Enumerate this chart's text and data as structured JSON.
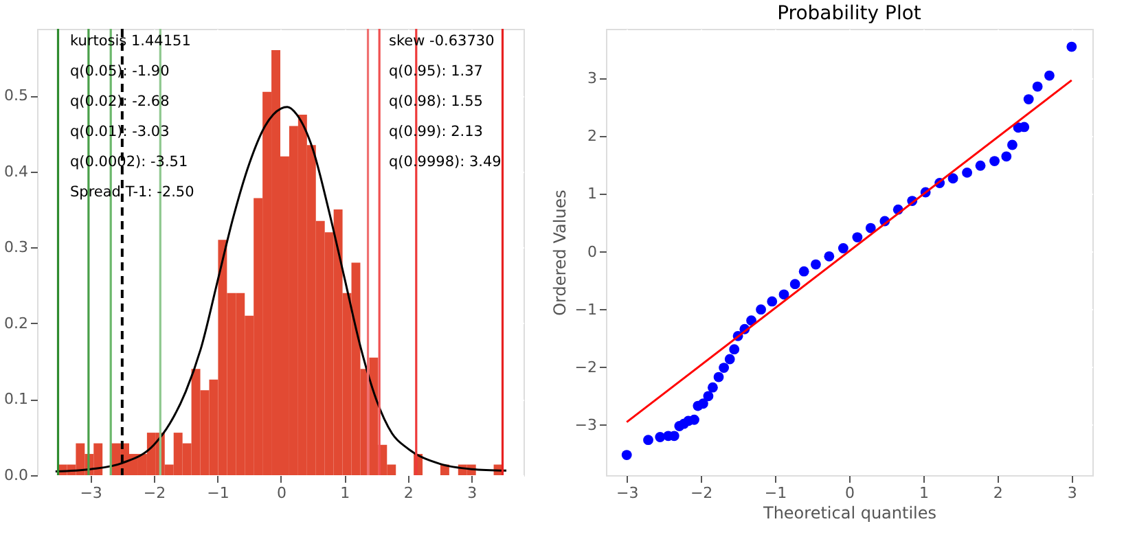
{
  "chart_data": [
    {
      "type": "histogram",
      "bins": [
        -3.51,
        -3.37,
        -3.23,
        -3.09,
        -2.95,
        -2.81,
        -2.67,
        -2.53,
        -2.39,
        -2.25,
        -2.11,
        -1.97,
        -1.83,
        -1.69,
        -1.55,
        -1.41,
        -1.27,
        -1.13,
        -0.99,
        -0.85,
        -0.71,
        -0.57,
        -0.43,
        -0.29,
        -0.15,
        -0.01,
        0.13,
        0.27,
        0.41,
        0.55,
        0.69,
        0.83,
        0.97,
        1.11,
        1.25,
        1.39,
        1.53,
        1.67,
        1.81,
        1.95,
        2.09,
        2.23,
        2.37,
        2.51,
        2.65,
        2.79,
        2.93,
        3.07,
        3.21,
        3.35,
        3.49
      ],
      "values": [
        0.014,
        0.014,
        0.042,
        0.028,
        0.042,
        0,
        0.042,
        0.042,
        0.028,
        0.028,
        0.056,
        0.056,
        0.014,
        0.056,
        0.042,
        0.14,
        0.112,
        0.126,
        0.31,
        0.24,
        0.24,
        0.21,
        0.365,
        0.505,
        0.56,
        0.42,
        0.46,
        0.475,
        0.435,
        0.335,
        0.32,
        0.35,
        0.24,
        0.28,
        0.14,
        0.155,
        0.04,
        0.014,
        0,
        0,
        0.028,
        0,
        0,
        0.014,
        0,
        0.014,
        0.014,
        0,
        0,
        0.014
      ],
      "color": "#e24a33",
      "series": [
        {
          "type": "line",
          "color": "#000000",
          "x": [
            -3.55,
            -3.0,
            -2.5,
            -2.0,
            -1.75,
            -1.5,
            -1.25,
            -1.0,
            -0.75,
            -0.5,
            -0.25,
            0.0,
            0.1,
            0.25,
            0.5,
            0.75,
            1.0,
            1.25,
            1.5,
            1.75,
            2.0,
            2.5,
            3.0,
            3.55
          ],
          "values": [
            0.005,
            0.008,
            0.016,
            0.04,
            0.068,
            0.11,
            0.17,
            0.255,
            0.34,
            0.41,
            0.46,
            0.483,
            0.485,
            0.475,
            0.43,
            0.35,
            0.26,
            0.17,
            0.1,
            0.055,
            0.035,
            0.015,
            0.008,
            0.006
          ]
        }
      ],
      "ref_lines": [
        {
          "axis": "x",
          "value": -3.51,
          "color": "#2e8b2e"
        },
        {
          "axis": "x",
          "value": -3.03,
          "color": "#4aa04a"
        },
        {
          "axis": "x",
          "value": -2.68,
          "color": "#6cb86c"
        },
        {
          "axis": "x",
          "value": -1.9,
          "color": "#8fc88f"
        },
        {
          "axis": "x",
          "value": -2.5,
          "color": "#000000",
          "line_style": "dashed"
        },
        {
          "axis": "x",
          "value": 1.37,
          "color": "#f07070"
        },
        {
          "axis": "x",
          "value": 1.55,
          "color": "#f05050"
        },
        {
          "axis": "x",
          "value": 2.13,
          "color": "#ee3a3a"
        },
        {
          "axis": "x",
          "value": 3.49,
          "color": "#e82020"
        }
      ],
      "annotations": [
        "kurtosis 1.44151",
        "q(0.05): -1.90",
        "q(0.02): -2.68",
        "q(0.01): -3.03",
        "q(0.0002): -3.51",
        "Spread T-1: -2.50",
        "skew -0.63730",
        "q(0.95): 1.37",
        "q(0.98): 1.55",
        "q(0.99): 2.13",
        "q(0.9998): 3.49"
      ],
      "xlim": [
        -3.84,
        3.82
      ],
      "ylim": [
        0,
        0.588
      ],
      "xticks": [
        {
          "value": -3,
          "label": "−3"
        },
        {
          "value": -2,
          "label": "−2"
        },
        {
          "value": -1,
          "label": "−1"
        },
        0,
        1,
        2,
        3
      ],
      "yticks": [
        {
          "value": 0,
          "label": "0.0"
        },
        {
          "value": 0.1,
          "label": "0.1"
        },
        {
          "value": 0.2,
          "label": "0.2"
        },
        {
          "value": 0.3,
          "label": "0.3"
        },
        {
          "value": 0.4,
          "label": "0.4"
        },
        {
          "value": 0.5,
          "label": "0.5"
        }
      ],
      "grid": true
    },
    {
      "type": "scatter",
      "title": "Probability Plot",
      "xlabel": "Theoretical quantiles",
      "ylabel": "Ordered Values",
      "marker": "circle",
      "series": [
        {
          "type": "scatter",
          "color": "#0000ff",
          "x": [
            -3.0,
            -2.71,
            -2.55,
            -2.44,
            -2.36,
            -2.29,
            -2.23,
            -2.17,
            -2.09,
            -2.04,
            -1.97,
            -1.9,
            -1.84,
            -1.76,
            -1.69,
            -1.61,
            -1.55,
            -1.5,
            -1.41,
            -1.32,
            -1.19,
            -1.04,
            -0.88,
            -0.73,
            -0.61,
            -0.45,
            -0.27,
            -0.08,
            0.11,
            0.29,
            0.48,
            0.66,
            0.85,
            1.03,
            1.22,
            1.4,
            1.59,
            1.77,
            1.96,
            2.12,
            2.2,
            2.28,
            2.36,
            2.42,
            2.54,
            2.7,
            3.0
          ],
          "values": [
            -3.52,
            -3.26,
            -3.21,
            -3.19,
            -3.19,
            -3.02,
            -2.98,
            -2.93,
            -2.91,
            -2.67,
            -2.63,
            -2.5,
            -2.35,
            -2.17,
            -2.01,
            -1.86,
            -1.69,
            -1.46,
            -1.34,
            -1.19,
            -1.0,
            -0.86,
            -0.74,
            -0.56,
            -0.34,
            -0.22,
            -0.08,
            0.06,
            0.25,
            0.41,
            0.53,
            0.73,
            0.88,
            1.03,
            1.19,
            1.27,
            1.37,
            1.49,
            1.57,
            1.65,
            1.85,
            2.15,
            2.16,
            2.64,
            2.86,
            3.05,
            3.55
          ]
        },
        {
          "type": "line",
          "color": "#ff0000",
          "marker": "none",
          "x": [
            -3.0,
            3.0
          ],
          "values": [
            -2.95,
            2.97
          ]
        }
      ],
      "xlim": [
        -3.28,
        3.28
      ],
      "ylim": [
        -3.87,
        3.86
      ],
      "xticks": [
        {
          "value": -3,
          "label": "−3"
        },
        {
          "value": -2,
          "label": "−2"
        },
        {
          "value": -1,
          "label": "−1"
        },
        0,
        1,
        2,
        3
      ],
      "yticks": [
        {
          "value": -3,
          "label": "−3"
        },
        {
          "value": -2,
          "label": "−2"
        },
        {
          "value": -1,
          "label": "−1"
        },
        0,
        1,
        2,
        3
      ],
      "grid": true
    }
  ]
}
